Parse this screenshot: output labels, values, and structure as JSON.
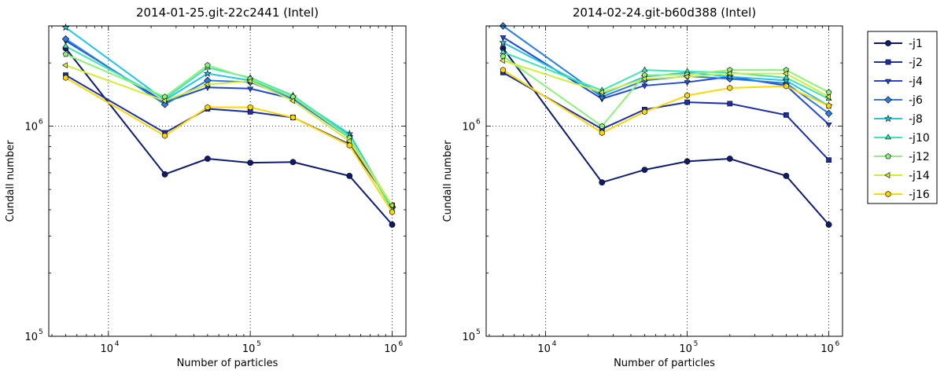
{
  "figure": {
    "background": "#ffffff"
  },
  "chart_data": [
    {
      "type": "line",
      "title": "2014-01-25.git-22c2441 (Intel)",
      "xlabel": "Number of particles",
      "ylabel": "Cundall number",
      "xscale": "log",
      "yscale": "log",
      "xlim": [
        3800,
        1250000
      ],
      "ylim": [
        100000,
        3000000
      ],
      "grid": true,
      "x_ticks": [
        {
          "value": 10000,
          "base": "10",
          "exp": "4"
        },
        {
          "value": 100000,
          "base": "10",
          "exp": "5"
        },
        {
          "value": 1000000,
          "base": "10",
          "exp": "6"
        }
      ],
      "y_ticks": [
        {
          "value": 100000,
          "base": "10",
          "exp": "5"
        },
        {
          "value": 1000000,
          "base": "10",
          "exp": "6"
        }
      ],
      "x": [
        5000,
        25000,
        50000,
        100000,
        200000,
        500000,
        1000000
      ],
      "series": [
        {
          "name": "-j1",
          "color": "#0d1b6e",
          "marker": "circle",
          "values": [
            2350000,
            590000,
            700000,
            670000,
            675000,
            580000,
            340000
          ]
        },
        {
          "name": "-j2",
          "color": "#1a2fa8",
          "marker": "square",
          "values": [
            1750000,
            930000,
            1210000,
            1170000,
            1100000,
            820000,
            420000
          ]
        },
        {
          "name": "-j4",
          "color": "#1f48d6",
          "marker": "triangle-down",
          "values": [
            2550000,
            1300000,
            1530000,
            1510000,
            1350000,
            880000,
            410000
          ]
        },
        {
          "name": "-j6",
          "color": "#2a7de0",
          "marker": "diamond",
          "values": [
            2600000,
            1270000,
            1650000,
            1620000,
            1350000,
            900000,
            410000
          ]
        },
        {
          "name": "-j8",
          "color": "#23c3e6",
          "marker": "star",
          "values": [
            2950000,
            1330000,
            1780000,
            1650000,
            1380000,
            920000,
            410000
          ]
        },
        {
          "name": "-j10",
          "color": "#3ce6b4",
          "marker": "triangle-up",
          "values": [
            2400000,
            1350000,
            1900000,
            1700000,
            1400000,
            900000,
            400000
          ]
        },
        {
          "name": "-j12",
          "color": "#8cf07a",
          "marker": "pentagon",
          "values": [
            2200000,
            1380000,
            1950000,
            1680000,
            1380000,
            880000,
            420000
          ]
        },
        {
          "name": "-j14",
          "color": "#d2ec3a",
          "marker": "triangle-left",
          "values": [
            1950000,
            1320000,
            1580000,
            1640000,
            1320000,
            850000,
            420000
          ]
        },
        {
          "name": "-j16",
          "color": "#ffd700",
          "marker": "hexagon",
          "values": [
            1700000,
            900000,
            1230000,
            1230000,
            1100000,
            810000,
            390000
          ]
        }
      ]
    },
    {
      "type": "line",
      "title": "2014-02-24.git-b60d388 (Intel)",
      "xlabel": "Number of particles",
      "ylabel": "Cundall number",
      "xscale": "log",
      "yscale": "log",
      "xlim": [
        3800,
        1250000
      ],
      "ylim": [
        100000,
        3000000
      ],
      "grid": true,
      "x_ticks": [
        {
          "value": 10000,
          "base": "10",
          "exp": "4"
        },
        {
          "value": 100000,
          "base": "10",
          "exp": "5"
        },
        {
          "value": 1000000,
          "base": "10",
          "exp": "6"
        }
      ],
      "y_ticks": [
        {
          "value": 100000,
          "base": "10",
          "exp": "5"
        },
        {
          "value": 1000000,
          "base": "10",
          "exp": "6"
        }
      ],
      "x": [
        5000,
        25000,
        50000,
        100000,
        200000,
        500000,
        1000000
      ],
      "series": [
        {
          "name": "-j1",
          "color": "#0d1b6e",
          "marker": "circle",
          "values": [
            2350000,
            540000,
            620000,
            680000,
            700000,
            580000,
            340000
          ]
        },
        {
          "name": "-j2",
          "color": "#1a2fa8",
          "marker": "square",
          "values": [
            1800000,
            970000,
            1200000,
            1300000,
            1280000,
            1130000,
            690000
          ]
        },
        {
          "name": "-j4",
          "color": "#1f48d6",
          "marker": "triangle-down",
          "values": [
            2650000,
            1350000,
            1560000,
            1620000,
            1720000,
            1560000,
            1020000
          ]
        },
        {
          "name": "-j6",
          "color": "#2a7de0",
          "marker": "diamond",
          "values": [
            3000000,
            1380000,
            1650000,
            1730000,
            1680000,
            1600000,
            1150000
          ]
        },
        {
          "name": "-j8",
          "color": "#23c3e6",
          "marker": "star",
          "values": [
            2500000,
            1420000,
            1720000,
            1800000,
            1720000,
            1650000,
            1250000
          ]
        },
        {
          "name": "-j10",
          "color": "#3ce6b4",
          "marker": "triangle-up",
          "values": [
            2250000,
            1480000,
            1850000,
            1820000,
            1800000,
            1700000,
            1350000
          ]
        },
        {
          "name": "-j12",
          "color": "#8cf07a",
          "marker": "pentagon",
          "values": [
            2150000,
            1000000,
            1750000,
            1760000,
            1850000,
            1850000,
            1450000
          ]
        },
        {
          "name": "-j14",
          "color": "#d2ec3a",
          "marker": "triangle-left",
          "values": [
            2050000,
            1450000,
            1680000,
            1720000,
            1780000,
            1780000,
            1380000
          ]
        },
        {
          "name": "-j16",
          "color": "#ffd700",
          "marker": "hexagon",
          "values": [
            1850000,
            930000,
            1170000,
            1400000,
            1520000,
            1550000,
            1250000
          ]
        }
      ]
    }
  ],
  "legend": {
    "placement": "right",
    "entries": [
      {
        "label": "-j1",
        "color": "#0d1b6e",
        "marker": "circle"
      },
      {
        "label": "-j2",
        "color": "#1a2fa8",
        "marker": "square"
      },
      {
        "label": "-j4",
        "color": "#1f48d6",
        "marker": "triangle-down"
      },
      {
        "label": "-j6",
        "color": "#2a7de0",
        "marker": "diamond"
      },
      {
        "label": "-j8",
        "color": "#23c3e6",
        "marker": "star"
      },
      {
        "label": "-j10",
        "color": "#3ce6b4",
        "marker": "triangle-up"
      },
      {
        "label": "-j12",
        "color": "#8cf07a",
        "marker": "pentagon"
      },
      {
        "label": "-j14",
        "color": "#d2ec3a",
        "marker": "triangle-left"
      },
      {
        "label": "-j16",
        "color": "#ffd700",
        "marker": "hexagon"
      }
    ]
  }
}
